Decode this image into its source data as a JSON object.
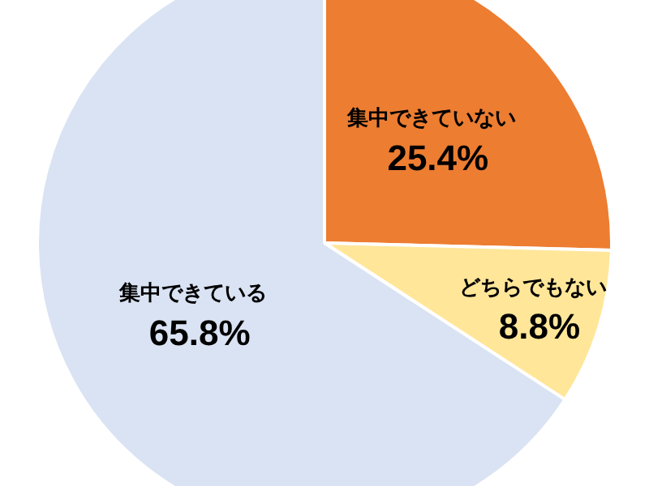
{
  "chart_data": {
    "type": "pie",
    "categories": [
      "集中できていない",
      "どちらでもない",
      "集中できている"
    ],
    "values": [
      25.4,
      8.8,
      65.8
    ],
    "colors": [
      "#ed7d31",
      "#ffe699",
      "#dae3f3"
    ],
    "value_labels": [
      "25.4%",
      "8.8%",
      "65.8%"
    ],
    "legend": false
  }
}
